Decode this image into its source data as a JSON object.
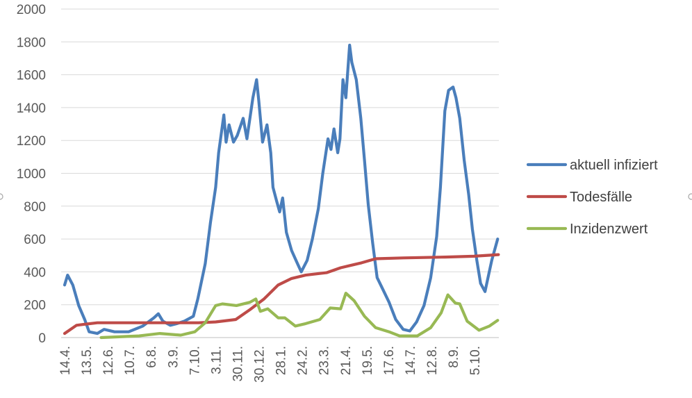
{
  "chart_data": {
    "type": "line",
    "title": "",
    "xlabel": "",
    "ylabel": "",
    "ylim": [
      0,
      2000
    ],
    "yticks": [
      0,
      200,
      400,
      600,
      800,
      1000,
      1200,
      1400,
      1600,
      1800,
      2000
    ],
    "grid": true,
    "legend_position": "right",
    "x_unit": "day index (daily data from 14.4.)",
    "x_range": [
      0,
      583
    ],
    "xtick_labels": [
      "14.4.",
      "13.5.",
      "12.6.",
      "10.7.",
      "6.8.",
      "3.9.",
      "7.10.",
      "3.11.",
      "30.11.",
      "30.12.",
      "28.1.",
      "24.2.",
      "23.3.",
      "21.4.",
      "19.5.",
      "17.6.",
      "14.7.",
      "12.8.",
      "8.9.",
      "5.10."
    ],
    "xtick_step_days": 29,
    "series": [
      {
        "name": "aktuell infiziert",
        "color": "#4a7ebb",
        "points": [
          [
            0,
            320
          ],
          [
            4,
            380
          ],
          [
            11,
            320
          ],
          [
            19,
            195
          ],
          [
            27,
            110
          ],
          [
            33,
            35
          ],
          [
            44,
            25
          ],
          [
            53,
            50
          ],
          [
            67,
            35
          ],
          [
            86,
            35
          ],
          [
            105,
            70
          ],
          [
            120,
            120
          ],
          [
            126,
            145
          ],
          [
            132,
            100
          ],
          [
            142,
            75
          ],
          [
            151,
            85
          ],
          [
            161,
            100
          ],
          [
            173,
            130
          ],
          [
            179,
            235
          ],
          [
            189,
            450
          ],
          [
            196,
            700
          ],
          [
            203,
            915
          ],
          [
            207,
            1125
          ],
          [
            214,
            1355
          ],
          [
            217,
            1190
          ],
          [
            221,
            1295
          ],
          [
            227,
            1190
          ],
          [
            232,
            1230
          ],
          [
            240,
            1335
          ],
          [
            245,
            1210
          ],
          [
            253,
            1460
          ],
          [
            258,
            1570
          ],
          [
            261,
            1440
          ],
          [
            266,
            1190
          ],
          [
            272,
            1295
          ],
          [
            277,
            1125
          ],
          [
            280,
            915
          ],
          [
            285,
            830
          ],
          [
            289,
            765
          ],
          [
            293,
            850
          ],
          [
            298,
            640
          ],
          [
            305,
            530
          ],
          [
            313,
            450
          ],
          [
            318,
            400
          ],
          [
            326,
            470
          ],
          [
            333,
            600
          ],
          [
            341,
            785
          ],
          [
            347,
            1000
          ],
          [
            354,
            1210
          ],
          [
            358,
            1145
          ],
          [
            362,
            1270
          ],
          [
            367,
            1125
          ],
          [
            370,
            1210
          ],
          [
            374,
            1570
          ],
          [
            378,
            1460
          ],
          [
            383,
            1780
          ],
          [
            386,
            1675
          ],
          [
            392,
            1570
          ],
          [
            398,
            1335
          ],
          [
            403,
            1080
          ],
          [
            408,
            810
          ],
          [
            414,
            575
          ],
          [
            420,
            365
          ],
          [
            427,
            300
          ],
          [
            436,
            215
          ],
          [
            445,
            110
          ],
          [
            455,
            50
          ],
          [
            464,
            40
          ],
          [
            473,
            95
          ],
          [
            483,
            195
          ],
          [
            492,
            365
          ],
          [
            500,
            615
          ],
          [
            505,
            915
          ],
          [
            511,
            1380
          ],
          [
            516,
            1505
          ],
          [
            522,
            1525
          ],
          [
            526,
            1460
          ],
          [
            531,
            1335
          ],
          [
            537,
            1080
          ],
          [
            543,
            870
          ],
          [
            548,
            660
          ],
          [
            554,
            470
          ],
          [
            559,
            330
          ],
          [
            565,
            280
          ],
          [
            569,
            365
          ],
          [
            574,
            470
          ],
          [
            582,
            600
          ]
        ]
      },
      {
        "name": "Todesfälle",
        "color": "#be4b48",
        "points": [
          [
            0,
            25
          ],
          [
            16,
            75
          ],
          [
            25,
            80
          ],
          [
            44,
            90
          ],
          [
            100,
            90
          ],
          [
            180,
            90
          ],
          [
            203,
            95
          ],
          [
            230,
            110
          ],
          [
            249,
            170
          ],
          [
            268,
            235
          ],
          [
            287,
            320
          ],
          [
            305,
            360
          ],
          [
            324,
            380
          ],
          [
            352,
            395
          ],
          [
            371,
            425
          ],
          [
            399,
            455
          ],
          [
            418,
            480
          ],
          [
            455,
            485
          ],
          [
            511,
            490
          ],
          [
            550,
            495
          ],
          [
            583,
            505
          ]
        ]
      },
      {
        "name": "Inzidenzwert",
        "color": "#98b954",
        "points": [
          [
            49,
            0
          ],
          [
            100,
            10
          ],
          [
            128,
            25
          ],
          [
            156,
            15
          ],
          [
            175,
            35
          ],
          [
            189,
            90
          ],
          [
            203,
            195
          ],
          [
            212,
            205
          ],
          [
            231,
            195
          ],
          [
            249,
            215
          ],
          [
            257,
            235
          ],
          [
            263,
            160
          ],
          [
            273,
            175
          ],
          [
            287,
            120
          ],
          [
            296,
            120
          ],
          [
            310,
            70
          ],
          [
            324,
            85
          ],
          [
            343,
            110
          ],
          [
            357,
            180
          ],
          [
            371,
            175
          ],
          [
            378,
            270
          ],
          [
            389,
            225
          ],
          [
            403,
            130
          ],
          [
            418,
            60
          ],
          [
            436,
            35
          ],
          [
            450,
            10
          ],
          [
            474,
            10
          ],
          [
            492,
            60
          ],
          [
            506,
            150
          ],
          [
            515,
            260
          ],
          [
            525,
            210
          ],
          [
            531,
            205
          ],
          [
            541,
            100
          ],
          [
            557,
            45
          ],
          [
            571,
            70
          ],
          [
            582,
            105
          ]
        ]
      }
    ]
  }
}
